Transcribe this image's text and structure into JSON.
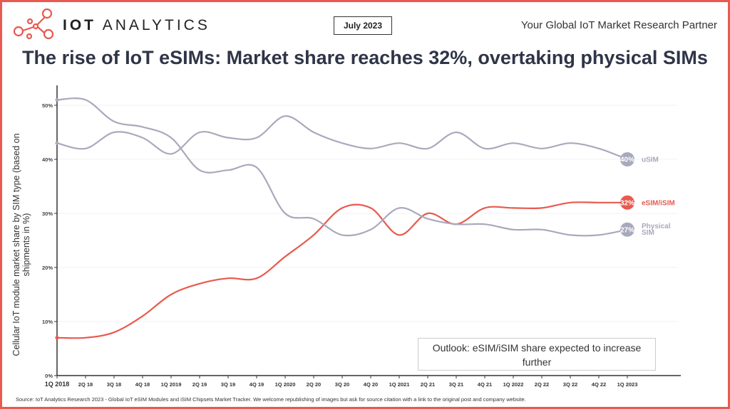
{
  "header": {
    "brand_bold": "IOT",
    "brand_rest": "ANALYTICS",
    "date_badge": "July 2023",
    "tagline": "Your Global IoT Market Research Partner"
  },
  "colors": {
    "accent": "#e8594f",
    "esim": "#e8594f",
    "gray_series": "#a9a9bd",
    "title": "#2f3547"
  },
  "chart_data": {
    "type": "line",
    "title": "The rise of IoT eSIMs: Market share reaches 32%, overtaking physical SIMs",
    "ylabel": "Cellular IoT module market share by SIM type (based on shipments in %)",
    "xlabel": "",
    "ylim": [
      0,
      50
    ],
    "yticks": [
      "0%",
      "10%",
      "20%",
      "30%",
      "40%",
      "50%"
    ],
    "grid": true,
    "categories": [
      "1Q 2018",
      "2Q 18",
      "3Q 18",
      "4Q 18",
      "1Q 2019",
      "2Q 19",
      "3Q 19",
      "4Q 19",
      "1Q 2020",
      "2Q 20",
      "3Q 20",
      "4Q 20",
      "1Q 2021",
      "2Q 21",
      "3Q 21",
      "4Q 21",
      "1Q 2022",
      "2Q 22",
      "3Q 22",
      "4Q 22",
      "1Q 2023"
    ],
    "series": [
      {
        "name": "uSIM",
        "end_label": "40%",
        "color": "#a9a9bd",
        "values": [
          43,
          42,
          45,
          44,
          41,
          45,
          44,
          44,
          48,
          45,
          43,
          42,
          43,
          42,
          45,
          42,
          43,
          42,
          43,
          42,
          40
        ]
      },
      {
        "name": "eSIM/iSIM",
        "end_label": "32%",
        "color": "#e8594f",
        "values": [
          7,
          7,
          8,
          11,
          15,
          17,
          18,
          18,
          22,
          26,
          31,
          31,
          26,
          30,
          28,
          31,
          31,
          31,
          32,
          32,
          32
        ]
      },
      {
        "name": "Physical SIM",
        "name_lines": [
          "Physical",
          "SIM"
        ],
        "end_label": "27%",
        "color": "#a9a9bd",
        "values": [
          51,
          51,
          47,
          46,
          44,
          38,
          38,
          38.5,
          30,
          29,
          26,
          27,
          31,
          29,
          28,
          28,
          27,
          27,
          26,
          26,
          27
        ]
      }
    ],
    "annotation": "Outlook: eSIM/iSIM share expected to increase further"
  },
  "source": "Source: IoT Analytics Research 2023 - Global IoT eSIM Modules and iSIM Chipsets Market Tracker. We welcome republishing of images but ask for source citation with a link to the original post and company website."
}
